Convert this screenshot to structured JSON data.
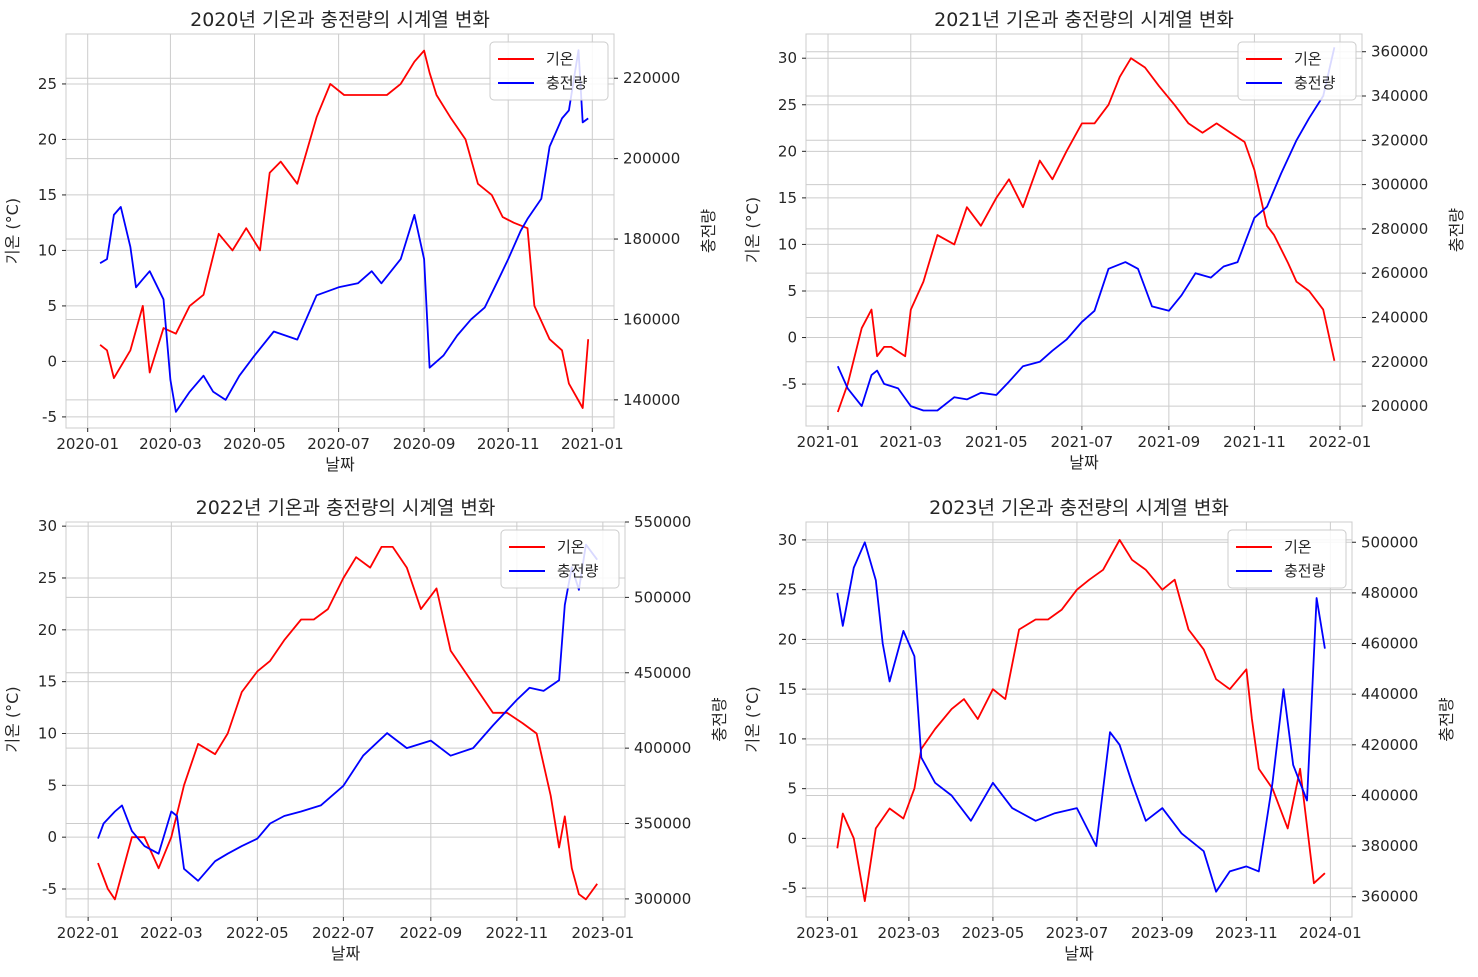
{
  "chart_data": [
    {
      "type": "line",
      "title": "2020년 기온과 충전량의 시계열 변화",
      "xlabel": "날짜",
      "ylabel_left": "기온 (°C)",
      "ylabel_right": "충전량",
      "x_ticks": [
        "2020-01",
        "2020-03",
        "2020-05",
        "2020-07",
        "2020-09",
        "2020-11",
        "2021-01"
      ],
      "ylim_left": [
        -6,
        29.5
      ],
      "yticks_left": [
        -5,
        0,
        5,
        10,
        15,
        20,
        25
      ],
      "ylim_right": [
        133000,
        231000
      ],
      "yticks_right": [
        140000,
        160000,
        180000,
        200000,
        220000
      ],
      "legend": "top-right",
      "grid": true,
      "series": [
        {
          "name": "기온",
          "axis": "left",
          "color": "#ff0000",
          "x": [
            "2020-01-10",
            "2020-01-15",
            "2020-01-20",
            "2020-02-01",
            "2020-02-10",
            "2020-02-15",
            "2020-02-25",
            "2020-03-05",
            "2020-03-15",
            "2020-03-25",
            "2020-04-05",
            "2020-04-15",
            "2020-04-25",
            "2020-05-05",
            "2020-05-12",
            "2020-05-20",
            "2020-06-01",
            "2020-06-15",
            "2020-06-25",
            "2020-07-05",
            "2020-07-15",
            "2020-07-25",
            "2020-08-05",
            "2020-08-15",
            "2020-08-25",
            "2020-09-01",
            "2020-09-05",
            "2020-09-10",
            "2020-09-20",
            "2020-10-01",
            "2020-10-10",
            "2020-10-20",
            "2020-10-28",
            "2020-11-05",
            "2020-11-15",
            "2020-11-20",
            "2020-12-01",
            "2020-12-10",
            "2020-12-15",
            "2020-12-25",
            "2020-12-29"
          ],
          "y": [
            1.5,
            1,
            -1.5,
            1,
            5,
            -1,
            3,
            2.5,
            5,
            6,
            11.5,
            10,
            12,
            10,
            17,
            18,
            16,
            22,
            25,
            24,
            24,
            24,
            24,
            25,
            27,
            28,
            26,
            24,
            22,
            20,
            16,
            15,
            13,
            12.5,
            12,
            5,
            2,
            1,
            -2,
            -4.2,
            2
          ]
        },
        {
          "name": "충전량",
          "axis": "right",
          "color": "#0000ff",
          "x": [
            "2020-01-10",
            "2020-01-15",
            "2020-01-20",
            "2020-01-25",
            "2020-02-01",
            "2020-02-05",
            "2020-02-10",
            "2020-02-15",
            "2020-02-25",
            "2020-03-01",
            "2020-03-05",
            "2020-03-15",
            "2020-03-25",
            "2020-04-01",
            "2020-04-10",
            "2020-04-20",
            "2020-05-01",
            "2020-05-15",
            "2020-06-01",
            "2020-06-15",
            "2020-07-01",
            "2020-07-15",
            "2020-07-25",
            "2020-08-01",
            "2020-08-15",
            "2020-08-25",
            "2020-09-01",
            "2020-09-05",
            "2020-09-15",
            "2020-09-25",
            "2020-10-05",
            "2020-10-15",
            "2020-10-25",
            "2020-11-01",
            "2020-11-10",
            "2020-11-15",
            "2020-11-25",
            "2020-12-01",
            "2020-12-10",
            "2020-12-15",
            "2020-12-22",
            "2020-12-25",
            "2020-12-29"
          ],
          "y": [
            174000,
            175000,
            186000,
            188000,
            178000,
            168000,
            170000,
            172000,
            165000,
            145000,
            137000,
            142000,
            146000,
            142000,
            140000,
            146000,
            151000,
            157000,
            155000,
            166000,
            168000,
            169000,
            172000,
            169000,
            175000,
            186000,
            175000,
            148000,
            151000,
            156000,
            160000,
            163000,
            170000,
            175000,
            182000,
            185000,
            190000,
            203000,
            210000,
            212000,
            227000,
            209000,
            210000
          ]
        }
      ]
    },
    {
      "type": "line",
      "title": "2021년 기온과 충전량의 시계열 변화",
      "xlabel": "날짜",
      "ylabel_left": "기온 (°C)",
      "ylabel_right": "충전량",
      "x_ticks": [
        "2021-01",
        "2021-03",
        "2021-05",
        "2021-07",
        "2021-09",
        "2021-11",
        "2022-01"
      ],
      "ylim_left": [
        -9.5,
        32.6
      ],
      "yticks_left": [
        -5,
        0,
        5,
        10,
        15,
        20,
        25,
        30
      ],
      "ylim_right": [
        191000,
        368000
      ],
      "yticks_right": [
        200000,
        220000,
        240000,
        260000,
        280000,
        300000,
        320000,
        340000,
        360000
      ],
      "legend": "top-right",
      "grid": true,
      "series": [
        {
          "name": "기온",
          "axis": "left",
          "color": "#ff0000",
          "x": [
            "2021-01-08",
            "2021-01-15",
            "2021-01-25",
            "2021-02-01",
            "2021-02-05",
            "2021-02-10",
            "2021-02-15",
            "2021-02-25",
            "2021-03-01",
            "2021-03-10",
            "2021-03-20",
            "2021-04-01",
            "2021-04-10",
            "2021-04-20",
            "2021-05-01",
            "2021-05-10",
            "2021-05-20",
            "2021-06-01",
            "2021-06-10",
            "2021-06-20",
            "2021-07-01",
            "2021-07-10",
            "2021-07-20",
            "2021-07-28",
            "2021-08-05",
            "2021-08-15",
            "2021-08-25",
            "2021-09-05",
            "2021-09-15",
            "2021-09-25",
            "2021-10-05",
            "2021-10-15",
            "2021-10-25",
            "2021-11-01",
            "2021-11-10",
            "2021-11-15",
            "2021-11-25",
            "2021-12-01",
            "2021-12-10",
            "2021-12-20",
            "2021-12-28"
          ],
          "y": [
            -8,
            -5,
            1,
            3,
            -2,
            -1,
            -1,
            -2,
            3,
            6,
            11,
            10,
            14,
            12,
            15,
            17,
            14,
            19,
            17,
            20,
            23,
            23,
            25,
            28,
            30,
            29,
            27,
            25,
            23,
            22,
            23,
            22,
            21,
            18,
            12,
            11,
            8,
            6,
            5,
            3,
            -2.5
          ]
        },
        {
          "name": "충전량",
          "axis": "right",
          "color": "#0000ff",
          "x": [
            "2021-01-08",
            "2021-01-15",
            "2021-01-25",
            "2021-02-01",
            "2021-02-05",
            "2021-02-10",
            "2021-02-20",
            "2021-03-01",
            "2021-03-10",
            "2021-03-20",
            "2021-04-01",
            "2021-04-10",
            "2021-04-20",
            "2021-05-01",
            "2021-05-10",
            "2021-05-20",
            "2021-06-01",
            "2021-06-10",
            "2021-06-20",
            "2021-07-01",
            "2021-07-10",
            "2021-07-20",
            "2021-08-01",
            "2021-08-10",
            "2021-08-20",
            "2021-09-01",
            "2021-09-10",
            "2021-09-20",
            "2021-10-01",
            "2021-10-10",
            "2021-10-20",
            "2021-11-01",
            "2021-11-10",
            "2021-11-20",
            "2021-12-01",
            "2021-12-10",
            "2021-12-20",
            "2021-12-28"
          ],
          "y": [
            218000,
            208000,
            200000,
            214000,
            216000,
            210000,
            208000,
            200000,
            198000,
            198000,
            204000,
            203000,
            206000,
            205000,
            211000,
            218000,
            220000,
            225000,
            230000,
            238000,
            243000,
            262000,
            265000,
            262000,
            245000,
            243000,
            250000,
            260000,
            258000,
            263000,
            265000,
            285000,
            290000,
            305000,
            320000,
            330000,
            340000,
            362000
          ]
        }
      ]
    },
    {
      "type": "line",
      "title": "2022년 기온과 충전량의 시계열 변화",
      "xlabel": "날짜",
      "ylabel_left": "기온 (°C)",
      "ylabel_right": "충전량",
      "x_ticks": [
        "2022-01",
        "2022-03",
        "2022-05",
        "2022-07",
        "2022-09",
        "2022-11",
        "2023-01"
      ],
      "ylim_left": [
        -7.7,
        30.4
      ],
      "yticks_left": [
        -5,
        0,
        5,
        10,
        15,
        20,
        25,
        30
      ],
      "ylim_right": [
        288000,
        550000
      ],
      "yticks_right": [
        300000,
        350000,
        400000,
        450000,
        500000,
        550000
      ],
      "legend": "top-right",
      "grid": true,
      "series": [
        {
          "name": "기온",
          "axis": "left",
          "color": "#ff0000",
          "x": [
            "2022-01-08",
            "2022-01-15",
            "2022-01-20",
            "2022-02-01",
            "2022-02-10",
            "2022-02-20",
            "2022-03-01",
            "2022-03-10",
            "2022-03-20",
            "2022-04-01",
            "2022-04-10",
            "2022-04-20",
            "2022-05-01",
            "2022-05-10",
            "2022-05-20",
            "2022-06-01",
            "2022-06-10",
            "2022-06-20",
            "2022-07-01",
            "2022-07-10",
            "2022-07-20",
            "2022-07-28",
            "2022-08-05",
            "2022-08-15",
            "2022-08-25",
            "2022-09-05",
            "2022-09-15",
            "2022-09-25",
            "2022-10-05",
            "2022-10-15",
            "2022-10-25",
            "2022-11-05",
            "2022-11-15",
            "2022-11-25",
            "2022-12-01",
            "2022-12-05",
            "2022-12-10",
            "2022-12-15",
            "2022-12-20",
            "2022-12-28"
          ],
          "y": [
            -2.5,
            -5,
            -6,
            0,
            0,
            -3,
            0,
            5,
            9,
            8,
            10,
            14,
            16,
            17,
            19,
            21,
            21,
            22,
            25,
            27,
            26,
            28,
            28,
            26,
            22,
            24,
            18,
            16,
            14,
            12,
            12,
            11,
            10,
            4,
            -1,
            2,
            -3,
            -5.5,
            -6,
            -4.5
          ]
        },
        {
          "name": "충전량",
          "axis": "right",
          "color": "#0000ff",
          "x": [
            "2022-01-08",
            "2022-01-12",
            "2022-01-20",
            "2022-01-25",
            "2022-02-01",
            "2022-02-10",
            "2022-02-20",
            "2022-03-01",
            "2022-03-05",
            "2022-03-10",
            "2022-03-20",
            "2022-04-01",
            "2022-04-10",
            "2022-04-20",
            "2022-05-01",
            "2022-05-10",
            "2022-05-20",
            "2022-06-01",
            "2022-06-15",
            "2022-07-01",
            "2022-07-15",
            "2022-08-01",
            "2022-08-15",
            "2022-09-01",
            "2022-09-15",
            "2022-10-01",
            "2022-10-15",
            "2022-11-01",
            "2022-11-10",
            "2022-11-20",
            "2022-12-01",
            "2022-12-05",
            "2022-12-10",
            "2022-12-15",
            "2022-12-20",
            "2022-12-28"
          ],
          "y": [
            340000,
            350000,
            358000,
            362000,
            345000,
            335000,
            330000,
            358000,
            355000,
            320000,
            312000,
            325000,
            330000,
            335000,
            340000,
            350000,
            355000,
            358000,
            362000,
            375000,
            395000,
            410000,
            400000,
            405000,
            395000,
            400000,
            415000,
            432000,
            440000,
            438000,
            445000,
            495000,
            520000,
            505000,
            535000,
            525000
          ]
        }
      ]
    },
    {
      "type": "line",
      "title": "2023년 기온과 충전량의 시계열 변화",
      "xlabel": "날짜",
      "ylabel_left": "기온 (°C)",
      "ylabel_right": "충전량",
      "x_ticks": [
        "2023-01",
        "2023-03",
        "2023-05",
        "2023-07",
        "2023-09",
        "2023-11",
        "2024-01"
      ],
      "ylim_left": [
        -7.9,
        31.8
      ],
      "yticks_left": [
        -5,
        0,
        5,
        10,
        15,
        20,
        25,
        30
      ],
      "ylim_right": [
        352000,
        508000
      ],
      "yticks_right": [
        360000,
        380000,
        400000,
        420000,
        440000,
        460000,
        480000,
        500000
      ],
      "legend": "top-right",
      "grid": true,
      "series": [
        {
          "name": "기온",
          "axis": "left",
          "color": "#ff0000",
          "x": [
            "2023-01-08",
            "2023-01-12",
            "2023-01-20",
            "2023-01-28",
            "2023-02-05",
            "2023-02-15",
            "2023-02-25",
            "2023-03-05",
            "2023-03-10",
            "2023-03-20",
            "2023-04-01",
            "2023-04-10",
            "2023-04-20",
            "2023-05-01",
            "2023-05-10",
            "2023-05-20",
            "2023-06-01",
            "2023-06-10",
            "2023-06-20",
            "2023-07-01",
            "2023-07-10",
            "2023-07-20",
            "2023-08-01",
            "2023-08-10",
            "2023-08-20",
            "2023-09-01",
            "2023-09-10",
            "2023-09-20",
            "2023-10-01",
            "2023-10-10",
            "2023-10-20",
            "2023-11-01",
            "2023-11-05",
            "2023-11-10",
            "2023-11-20",
            "2023-12-01",
            "2023-12-10",
            "2023-12-20",
            "2023-12-28"
          ],
          "y": [
            -1,
            2.5,
            0,
            -6.3,
            1,
            3,
            2,
            5,
            9,
            11,
            13,
            14,
            12,
            15,
            14,
            21,
            22,
            22,
            23,
            25,
            26,
            27,
            30,
            28,
            27,
            25,
            26,
            21,
            19,
            16,
            15,
            17,
            12,
            7,
            5,
            1,
            7,
            -4.5,
            -3.5
          ]
        },
        {
          "name": "충전량",
          "axis": "right",
          "color": "#0000ff",
          "x": [
            "2023-01-08",
            "2023-01-12",
            "2023-01-20",
            "2023-01-28",
            "2023-02-05",
            "2023-02-10",
            "2023-02-15",
            "2023-02-25",
            "2023-03-05",
            "2023-03-10",
            "2023-03-20",
            "2023-04-01",
            "2023-04-15",
            "2023-05-01",
            "2023-05-15",
            "2023-06-01",
            "2023-06-15",
            "2023-07-01",
            "2023-07-15",
            "2023-07-25",
            "2023-08-01",
            "2023-08-10",
            "2023-08-20",
            "2023-09-01",
            "2023-09-15",
            "2023-10-01",
            "2023-10-10",
            "2023-10-20",
            "2023-11-01",
            "2023-11-10",
            "2023-11-20",
            "2023-11-28",
            "2023-12-05",
            "2023-12-15",
            "2023-12-22",
            "2023-12-28"
          ],
          "y": [
            480000,
            467000,
            490000,
            500000,
            485000,
            460000,
            445000,
            465000,
            455000,
            415000,
            405000,
            400000,
            390000,
            405000,
            395000,
            390000,
            393000,
            395000,
            380000,
            425000,
            420000,
            405000,
            390000,
            395000,
            385000,
            378000,
            362000,
            370000,
            372000,
            370000,
            405000,
            442000,
            412000,
            398000,
            478000,
            458000
          ]
        }
      ]
    }
  ]
}
